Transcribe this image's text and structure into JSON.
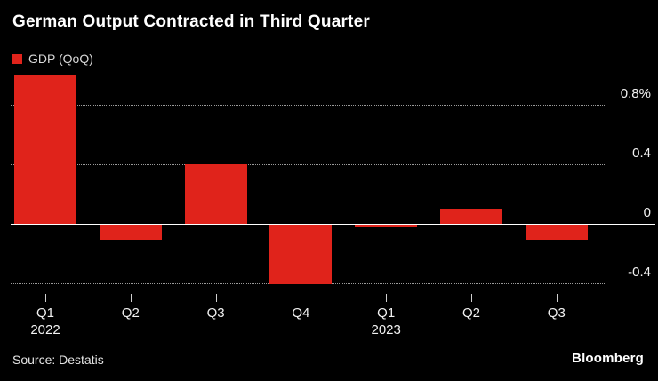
{
  "footer": {
    "source": "Source: Destatis",
    "branding": "Bloomberg"
  },
  "colors": {
    "background": "#000000",
    "bar": "#e0231b",
    "grid_line": "#9b9b9b",
    "zero_line": "#ffffff",
    "text_primary": "#ffffff",
    "text_secondary": "#d8d8d8"
  },
  "chart_data": {
    "type": "bar",
    "title": "German Output Contracted in Third Quarter",
    "series_name": "GDP (QoQ)",
    "unit": "%",
    "categories": [
      "Q1",
      "Q2",
      "Q3",
      "Q4",
      "Q1",
      "Q2",
      "Q3"
    ],
    "year_labels": {
      "0": "2022",
      "4": "2023"
    },
    "values": [
      1.0,
      -0.1,
      0.4,
      -0.4,
      -0.02,
      0.1,
      -0.1
    ],
    "y_ticks": [
      {
        "value": 0.8,
        "label": "0.8%"
      },
      {
        "value": 0.4,
        "label": "0.4"
      },
      {
        "value": 0,
        "label": "0"
      },
      {
        "value": -0.4,
        "label": "-0.4"
      }
    ],
    "ylim": [
      -0.55,
      1.05
    ],
    "grid": "horizontal-dotted",
    "legend_position": "top-left",
    "bar_color": "#e0231b",
    "source": "Source: Destatis"
  }
}
